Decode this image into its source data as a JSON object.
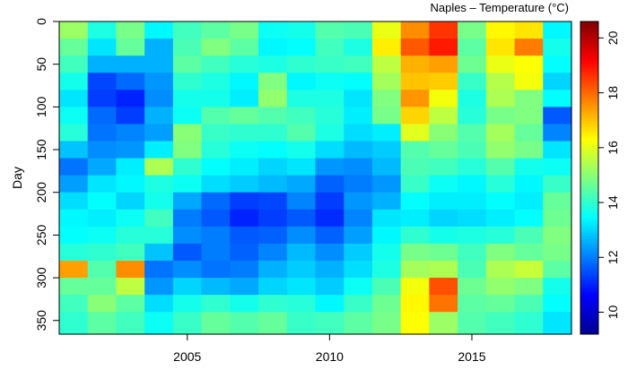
{
  "chart_data": {
    "type": "heatmap",
    "colorbar_title": "Naples – Temperature (°C)",
    "xlabel": "",
    "ylabel": "Day",
    "x_range": [
      2000.5,
      2018.5
    ],
    "y_range": [
      0,
      366
    ],
    "y_reversed": true,
    "x_ticks": [
      2005,
      2010,
      2015
    ],
    "x_tick_labels": [
      "2005",
      "2010",
      "2015"
    ],
    "y_ticks": [
      0,
      50,
      100,
      150,
      200,
      250,
      300,
      350
    ],
    "y_tick_labels": [
      "0",
      "50",
      "100",
      "150",
      "200",
      "250",
      "300",
      "350"
    ],
    "value_range": [
      9.2,
      20.6
    ],
    "colorbar_ticks": [
      10,
      12,
      14,
      16,
      18,
      20
    ],
    "colorbar_tick_labels": [
      "10",
      "12",
      "14",
      "16",
      "18",
      "20"
    ],
    "colormap": "jet",
    "colormap_stops": [
      "#00008f",
      "#0000ff",
      "#0080ff",
      "#00ffff",
      "#80ff80",
      "#ffff00",
      "#ff8000",
      "#ff0000",
      "#800000"
    ],
    "day_breaks": [
      0,
      20,
      40,
      60,
      80,
      100,
      120,
      140,
      160,
      180,
      200,
      220,
      240,
      260,
      280,
      300,
      320,
      340,
      366
    ],
    "years": [
      2001,
      2002,
      2003,
      2004,
      2005,
      2006,
      2007,
      2008,
      2009,
      2010,
      2011,
      2012,
      2013,
      2014,
      2015,
      2016,
      2017,
      2018
    ],
    "grid": [
      [
        15.2,
        13.8,
        14.8,
        13.4,
        14.2,
        14.5,
        14.8,
        13.6,
        13.7,
        14.4,
        14.3,
        16.1,
        17.6,
        18.6,
        14.8,
        16.4,
        16.6,
        13.4
      ],
      [
        14.6,
        13.2,
        14.6,
        12.6,
        14.3,
        14.9,
        14.5,
        13.4,
        13.5,
        14.2,
        13.8,
        16.5,
        18.2,
        18.9,
        14.5,
        16.6,
        17.8,
        13.7
      ],
      [
        14.2,
        12.6,
        12.6,
        12.6,
        14.5,
        14.2,
        13.9,
        13.8,
        14.0,
        14.1,
        14.2,
        15.6,
        17.2,
        17.4,
        14.7,
        16.1,
        16.3,
        13.5
      ],
      [
        13.7,
        11.4,
        11.8,
        12.3,
        14.0,
        13.8,
        13.4,
        14.9,
        13.4,
        13.6,
        13.5,
        15.3,
        17.0,
        16.9,
        14.1,
        15.5,
        16.2,
        13.0
      ],
      [
        13.2,
        11.3,
        11.0,
        12.2,
        13.7,
        13.7,
        13.3,
        15.1,
        13.8,
        13.8,
        13.2,
        14.9,
        17.5,
        16.2,
        13.8,
        15.4,
        14.9,
        13.5
      ],
      [
        13.6,
        11.8,
        11.3,
        12.6,
        13.6,
        14.4,
        14.6,
        14.4,
        14.2,
        13.9,
        13.3,
        14.8,
        16.8,
        15.6,
        13.9,
        14.8,
        14.9,
        11.6
      ],
      [
        13.9,
        11.9,
        12.1,
        12.4,
        15.0,
        14.1,
        14.0,
        14.0,
        14.4,
        13.8,
        13.1,
        13.3,
        16.0,
        15.0,
        14.4,
        15.3,
        14.6,
        12.1
      ],
      [
        12.8,
        12.2,
        12.3,
        13.3,
        14.9,
        13.9,
        13.6,
        13.5,
        13.7,
        13.1,
        12.7,
        12.9,
        14.4,
        14.6,
        14.3,
        15.1,
        14.8,
        13.2
      ],
      [
        11.9,
        12.5,
        13.3,
        15.4,
        14.0,
        13.5,
        13.3,
        13.0,
        13.2,
        12.3,
        12.2,
        12.7,
        14.3,
        14.2,
        13.9,
        14.4,
        13.7,
        13.6
      ],
      [
        12.4,
        13.2,
        13.4,
        13.8,
        13.6,
        13.1,
        12.9,
        12.7,
        12.5,
        11.7,
        12.0,
        12.3,
        14.1,
        13.6,
        13.4,
        13.9,
        13.4,
        14.1
      ],
      [
        13.1,
        13.5,
        13.0,
        13.7,
        12.5,
        11.8,
        11.3,
        11.4,
        12.1,
        11.3,
        12.3,
        12.6,
        13.5,
        13.3,
        13.3,
        13.5,
        13.3,
        14.6
      ],
      [
        13.4,
        13.3,
        13.6,
        14.2,
        12.0,
        11.6,
        11.0,
        11.3,
        11.6,
        11.1,
        12.1,
        13.2,
        13.3,
        13.0,
        13.1,
        13.3,
        13.5,
        14.7
      ],
      [
        13.5,
        13.6,
        13.9,
        13.9,
        12.2,
        12.0,
        11.6,
        11.7,
        12.2,
        11.7,
        12.4,
        13.4,
        14.0,
        13.7,
        13.8,
        13.9,
        14.3,
        14.9
      ],
      [
        13.9,
        14.0,
        14.2,
        12.8,
        11.6,
        12.0,
        11.7,
        12.1,
        12.7,
        12.2,
        12.9,
        13.7,
        14.8,
        14.7,
        14.2,
        14.9,
        14.6,
        14.8
      ],
      [
        17.4,
        14.4,
        17.6,
        11.9,
        12.2,
        11.9,
        12.0,
        12.6,
        12.9,
        12.6,
        13.1,
        13.8,
        15.3,
        15.4,
        14.3,
        15.4,
        15.7,
        14.5
      ],
      [
        14.6,
        14.6,
        15.6,
        12.3,
        13.0,
        12.7,
        12.5,
        13.0,
        13.2,
        12.9,
        13.6,
        14.3,
        16.2,
        18.3,
        14.7,
        15.1,
        14.9,
        13.7
      ],
      [
        14.2,
        15.0,
        14.5,
        13.1,
        13.7,
        14.0,
        13.7,
        14.0,
        13.9,
        13.4,
        14.1,
        14.7,
        16.4,
        17.9,
        14.5,
        14.6,
        14.3,
        13.5
      ],
      [
        14.0,
        14.5,
        14.2,
        13.6,
        14.1,
        14.6,
        14.4,
        14.6,
        14.1,
        14.2,
        14.5,
        14.8,
        16.3,
        15.2,
        14.4,
        14.2,
        14.0,
        13.2
      ]
    ]
  }
}
